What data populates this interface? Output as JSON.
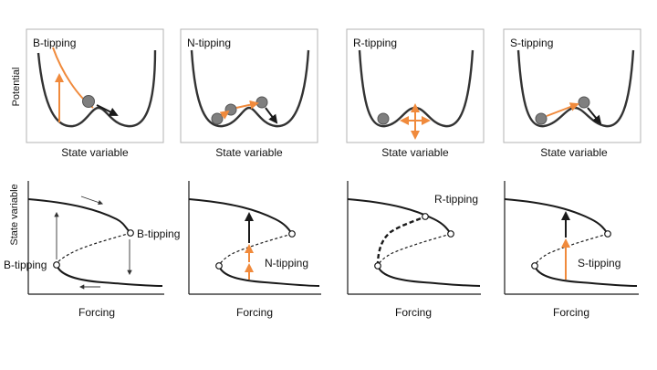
{
  "top_row": {
    "y_axis_label": "Potential",
    "x_axis_label": "State variable",
    "panels": [
      {
        "title": "B-tipping"
      },
      {
        "title": "N-tipping"
      },
      {
        "title": "R-tipping"
      },
      {
        "title": "S-tipping"
      }
    ]
  },
  "bottom_row": {
    "y_axis_label": "State variable",
    "x_axis_label": "Forcing",
    "panels": [
      {
        "labels": [
          "B-tipping",
          "B-tipping"
        ]
      },
      {
        "labels": [
          "N-tipping"
        ]
      },
      {
        "labels": [
          "R-tipping"
        ]
      },
      {
        "labels": [
          "S-tipping"
        ]
      }
    ]
  },
  "colors": {
    "curve": "#1a1a1a",
    "accent": "#f08a3c",
    "ball": "#7f7f7f",
    "frame": "#b3b3b3"
  }
}
